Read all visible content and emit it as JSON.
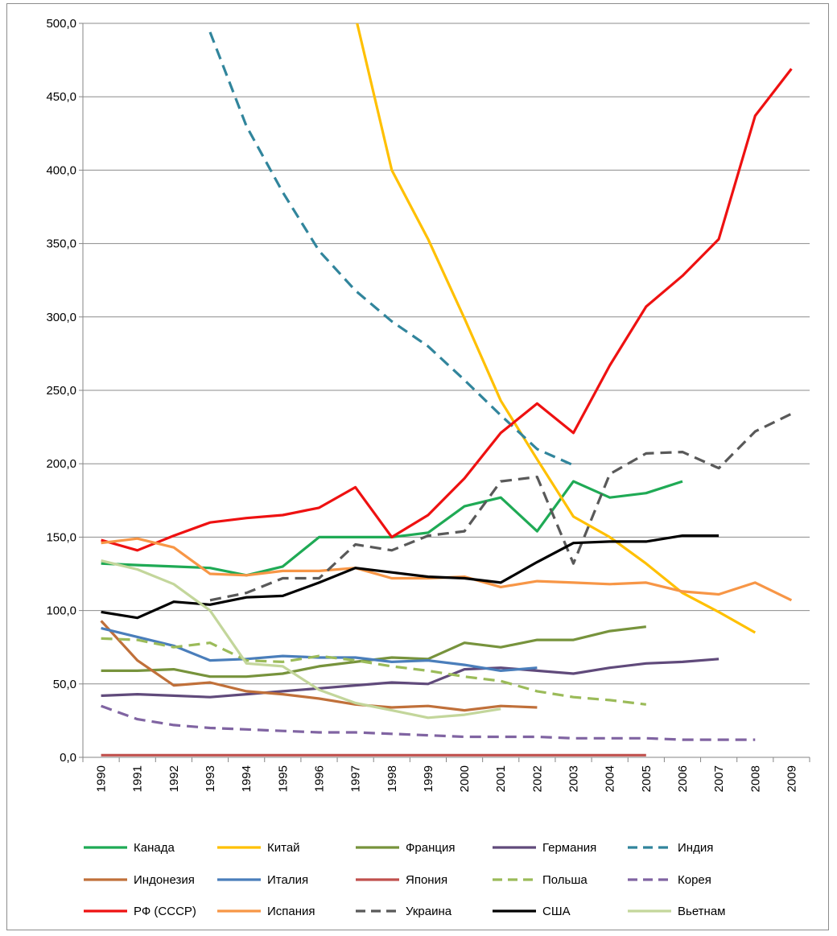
{
  "chart_data": {
    "type": "line",
    "title": "",
    "xlabel": "",
    "ylabel": "",
    "ylim": [
      0,
      500
    ],
    "y_ticks": [
      "0,0",
      "50,0",
      "100,0",
      "150,0",
      "200,0",
      "250,0",
      "300,0",
      "350,0",
      "400,0",
      "450,0",
      "500,0"
    ],
    "y_tick_values": [
      0,
      50,
      100,
      150,
      200,
      250,
      300,
      350,
      400,
      450,
      500
    ],
    "categories": [
      "1990",
      "1991",
      "1992",
      "1993",
      "1994",
      "1995",
      "1996",
      "1997",
      "1998",
      "1999",
      "2000",
      "2001",
      "2002",
      "2003",
      "2004",
      "2005",
      "2006",
      "2007",
      "2008",
      "2009"
    ],
    "grid": true,
    "legend_position": "bottom",
    "series": [
      {
        "name": "Канада",
        "color": "#1faa55",
        "dash": false,
        "values": [
          132,
          131,
          130,
          129,
          124,
          130,
          150,
          150,
          150,
          153,
          171,
          177,
          154,
          188,
          177,
          180,
          188,
          null,
          null,
          null
        ]
      },
      {
        "name": "Китай",
        "color": "#ffc000",
        "dash": false,
        "values": [
          null,
          null,
          null,
          null,
          null,
          null,
          null,
          505,
          400,
          353,
          299,
          243,
          203,
          164,
          150,
          132,
          112,
          99,
          85,
          null
        ]
      },
      {
        "name": "Франция",
        "color": "#77933c",
        "dash": false,
        "values": [
          59,
          59,
          60,
          55,
          55,
          57,
          62,
          65,
          68,
          67,
          78,
          75,
          80,
          80,
          86,
          89,
          null,
          null,
          null,
          null
        ]
      },
      {
        "name": "Германия",
        "color": "#604a7b",
        "dash": false,
        "values": [
          42,
          43,
          42,
          41,
          43,
          45,
          47,
          49,
          51,
          50,
          60,
          61,
          59,
          57,
          61,
          64,
          65,
          67,
          null,
          null
        ]
      },
      {
        "name": "Индия",
        "color": "#31859c",
        "dash": true,
        "values": [
          null,
          null,
          null,
          494,
          430,
          385,
          345,
          318,
          297,
          280,
          257,
          233,
          210,
          199,
          null,
          null,
          null,
          null,
          null,
          null
        ]
      },
      {
        "name": "Индонезия",
        "color": "#c0703a",
        "dash": false,
        "values": [
          93,
          66,
          49,
          51,
          45,
          43,
          40,
          36,
          34,
          35,
          32,
          35,
          34,
          null,
          null,
          null,
          null,
          null,
          null,
          null
        ]
      },
      {
        "name": "Италия",
        "color": "#4a7ebb",
        "dash": false,
        "values": [
          88,
          82,
          76,
          66,
          67,
          69,
          68,
          68,
          65,
          66,
          63,
          59,
          61,
          null,
          null,
          null,
          null,
          null,
          null,
          null
        ]
      },
      {
        "name": "Япония",
        "color": "#c0504d",
        "dash": false,
        "values": [
          1.5,
          1.5,
          1.5,
          1.5,
          1.5,
          1.5,
          1.5,
          1.5,
          1.5,
          1.5,
          1.5,
          1.5,
          1.5,
          1.5,
          1.5,
          1.5,
          null,
          null,
          null,
          null
        ]
      },
      {
        "name": "Польша",
        "color": "#9bbb59",
        "dash": true,
        "values": [
          81,
          80,
          75,
          78,
          66,
          65,
          69,
          66,
          62,
          59,
          55,
          52,
          45,
          41,
          39,
          36,
          null,
          null,
          null,
          null
        ]
      },
      {
        "name": "Корея",
        "color": "#8064a2",
        "dash": true,
        "values": [
          35,
          26,
          22,
          20,
          19,
          18,
          17,
          17,
          16,
          15,
          14,
          14,
          14,
          13,
          13,
          13,
          12,
          12,
          12,
          null
        ]
      },
      {
        "name": "РФ (СССР)",
        "color": "#ee1111",
        "dash": false,
        "values": [
          148,
          141,
          151,
          160,
          163,
          165,
          170,
          184,
          150,
          165,
          190,
          221,
          241,
          221,
          267,
          307,
          328,
          353,
          437,
          469
        ]
      },
      {
        "name": "Испания",
        "color": "#f79646",
        "dash": false,
        "values": [
          146,
          149,
          143,
          125,
          124,
          127,
          127,
          129,
          122,
          122,
          123,
          116,
          120,
          119,
          118,
          119,
          113,
          111,
          119,
          107
        ]
      },
      {
        "name": "Украина",
        "color": "#595959",
        "dash": true,
        "values": [
          null,
          null,
          null,
          107,
          112,
          122,
          122,
          145,
          141,
          151,
          154,
          188,
          191,
          132,
          193,
          207,
          208,
          197,
          222,
          234
        ]
      },
      {
        "name": "США",
        "color": "#000000",
        "dash": false,
        "values": [
          99,
          95,
          106,
          104,
          109,
          110,
          119,
          129,
          126,
          123,
          122,
          119,
          133,
          146,
          147,
          147,
          151,
          151,
          null,
          null
        ]
      },
      {
        "name": "Вьетнам",
        "color": "#c3d69b",
        "dash": false,
        "values": [
          134,
          128,
          118,
          100,
          64,
          62,
          46,
          37,
          32,
          27,
          29,
          33,
          null,
          null,
          null,
          null,
          null,
          null,
          null,
          null
        ]
      }
    ]
  }
}
